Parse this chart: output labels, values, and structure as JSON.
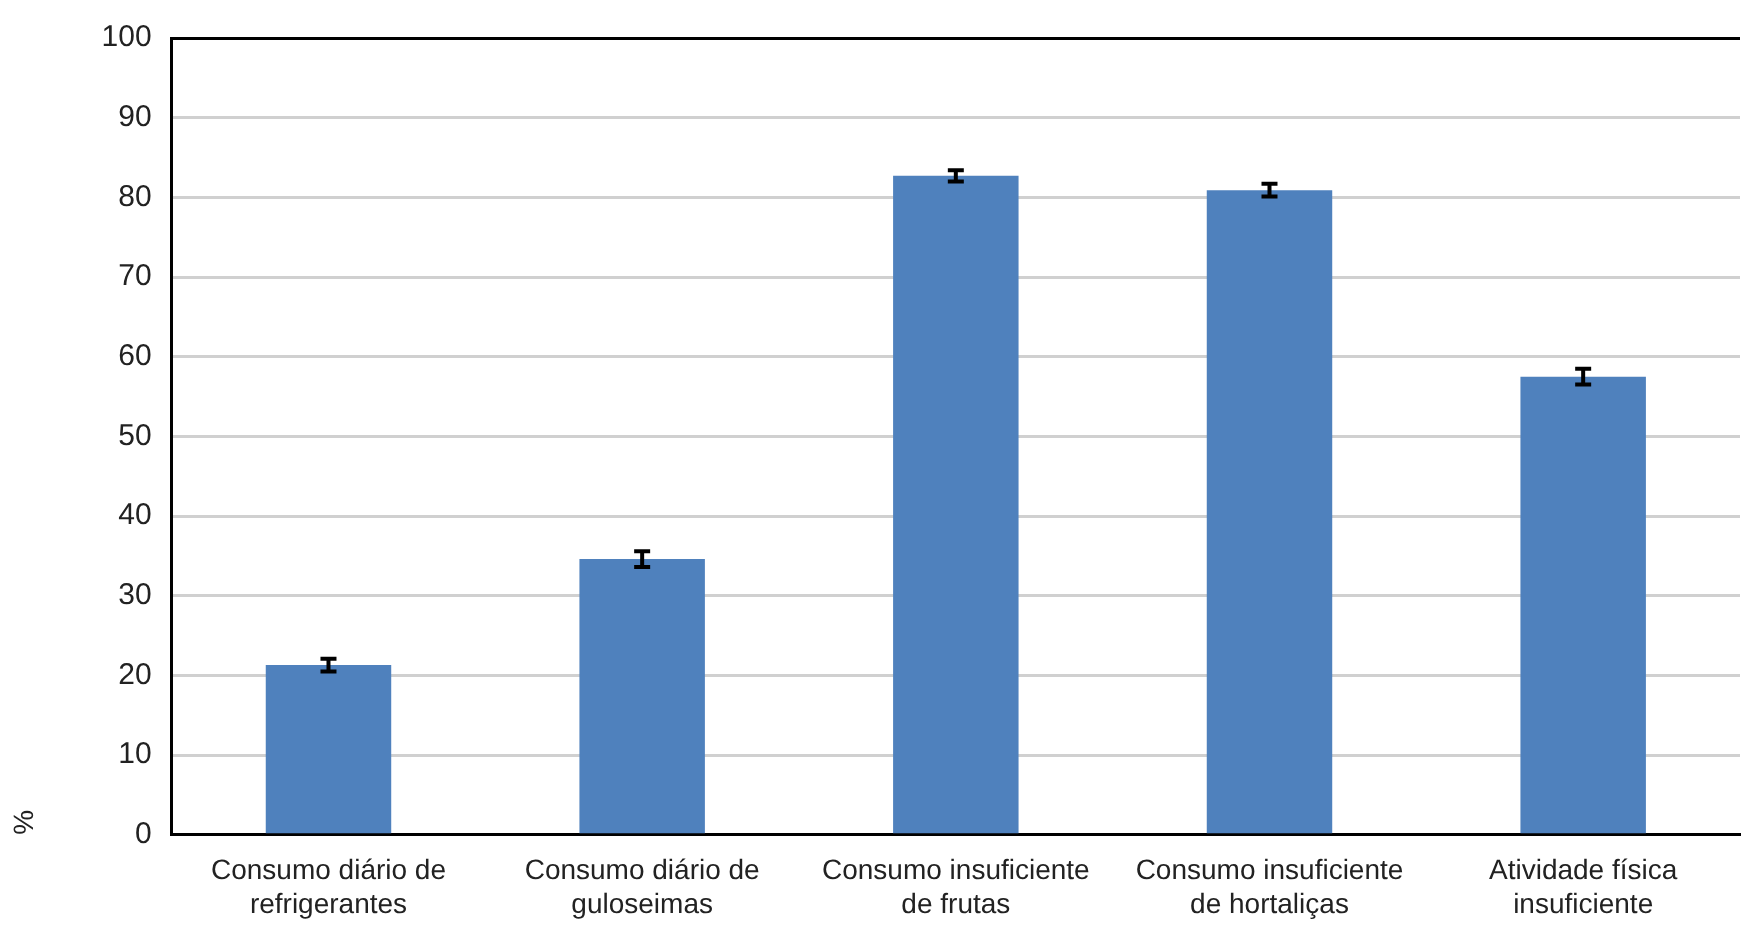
{
  "chart_data": {
    "type": "bar",
    "ylabel": "%",
    "categories": [
      "Consumo diário de refrigerantes",
      "Consumo diário de guloseimas",
      "Consumo insuficiente de frutas",
      "Consumo insuficiente de hortaliças",
      "Atividade física insuficiente"
    ],
    "values": [
      21.3,
      34.6,
      82.7,
      80.9,
      57.5
    ],
    "errors": [
      0.8,
      1.0,
      0.7,
      0.8,
      1.0
    ],
    "color": "#4f81bd",
    "ylim": [
      0,
      100
    ],
    "yticks": [
      0,
      10,
      20,
      30,
      40,
      50,
      60,
      70,
      80,
      90,
      100
    ],
    "grid": "y",
    "legend": false
  }
}
